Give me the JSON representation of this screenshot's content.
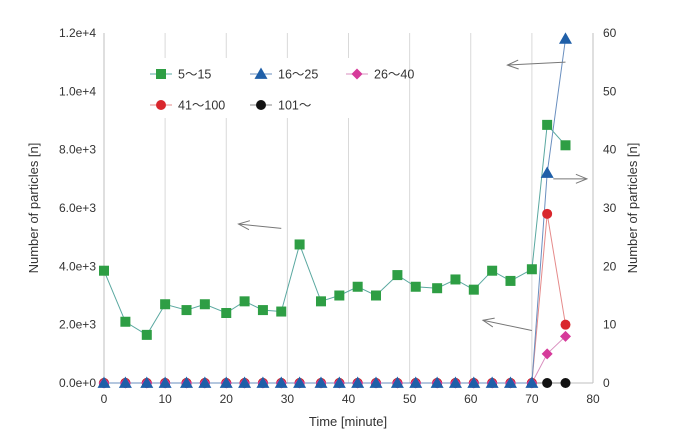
{
  "chart_data": {
    "type": "scatter",
    "x_axis": {
      "label": "Time [minute]",
      "min": 0,
      "max": 80,
      "step": 10,
      "ticks": [
        "0",
        "10",
        "20",
        "30",
        "40",
        "50",
        "60",
        "70",
        "80"
      ]
    },
    "y_axis_left": {
      "label": "Number of particles [n]",
      "min": 0,
      "max": 12000,
      "step": 2000,
      "ticks": [
        "0.0e+0",
        "2.0e+3",
        "4.0e+3",
        "6.0e+3",
        "8.0e+3",
        "1.0e+4",
        "1.2e+4"
      ]
    },
    "y_axis_right": {
      "label": "Number of particles [n]",
      "min": 0,
      "max": 60,
      "step": 10,
      "ticks": [
        "0",
        "10",
        "20",
        "30",
        "40",
        "50",
        "60"
      ]
    },
    "grid": "vertical",
    "legend_position": "top-left",
    "x": [
      0,
      3.5,
      7,
      10,
      13.5,
      16.5,
      20,
      23,
      26,
      29,
      32,
      35.5,
      38.5,
      41.5,
      44.5,
      48,
      51,
      54.5,
      57.5,
      60.5,
      63.5,
      66.5,
      70,
      72.5,
      75.5
    ],
    "series": [
      {
        "name": "5～15",
        "axis": "left",
        "marker": "square",
        "color": "#2e9e44",
        "line_color": "#5aa8a0",
        "values": [
          3850,
          2100,
          1650,
          2700,
          2500,
          2700,
          2400,
          2800,
          2500,
          2450,
          4750,
          2800,
          3000,
          3300,
          3000,
          3700,
          3300,
          3250,
          3550,
          3200,
          3850,
          3500,
          3900,
          8850,
          8150
        ]
      },
      {
        "name": "16～25",
        "axis": "right",
        "marker": "triangle",
        "color": "#1f5fa8",
        "line_color": "#6a8fbf",
        "values": [
          0,
          0,
          0,
          0,
          0,
          0,
          0,
          0,
          0,
          0,
          0,
          0,
          0,
          0,
          0,
          0,
          0,
          0,
          0,
          0,
          0,
          0,
          0,
          36,
          59
        ]
      },
      {
        "name": "26～40",
        "axis": "right",
        "marker": "diamond",
        "color": "#d63a9a",
        "line_color": "#d98fbf",
        "values": [
          0,
          0,
          0,
          0,
          0,
          0,
          0,
          0,
          0,
          0,
          0,
          0,
          0,
          0,
          0,
          0,
          0,
          0,
          0,
          0,
          0,
          0,
          0,
          5,
          8
        ]
      },
      {
        "name": "41～100",
        "axis": "right",
        "marker": "circle",
        "color": "#d9262c",
        "line_color": "#e58a8a",
        "values": [
          0,
          0,
          0,
          0,
          0,
          0,
          0,
          0,
          0,
          0,
          0,
          0,
          0,
          0,
          0,
          0,
          0,
          0,
          0,
          0,
          0,
          0,
          0,
          29,
          10
        ]
      },
      {
        "name": "101～",
        "axis": "right",
        "marker": "circle",
        "color": "#111111",
        "line_color": "#888888",
        "values": [
          0,
          0,
          0,
          0,
          0,
          0,
          0,
          0,
          0,
          0,
          0,
          0,
          0,
          0,
          0,
          0,
          0,
          0,
          0,
          0,
          0,
          0,
          0,
          0,
          0
        ]
      }
    ],
    "annotations": [
      {
        "type": "arrow",
        "direction": "left",
        "axis": "left",
        "tail": [
          75.5,
          11000
        ],
        "head": [
          66,
          10900
        ]
      },
      {
        "type": "arrow",
        "direction": "right",
        "axis": "right",
        "tail": [
          73.5,
          35
        ],
        "head": [
          79,
          35
        ]
      },
      {
        "type": "arrow",
        "direction": "left",
        "axis": "left",
        "tail": [
          29,
          5300
        ],
        "head": [
          22,
          5450
        ]
      },
      {
        "type": "arrow",
        "direction": "left",
        "axis": "left",
        "tail": [
          70,
          1800
        ],
        "head": [
          62,
          2150
        ]
      }
    ]
  }
}
